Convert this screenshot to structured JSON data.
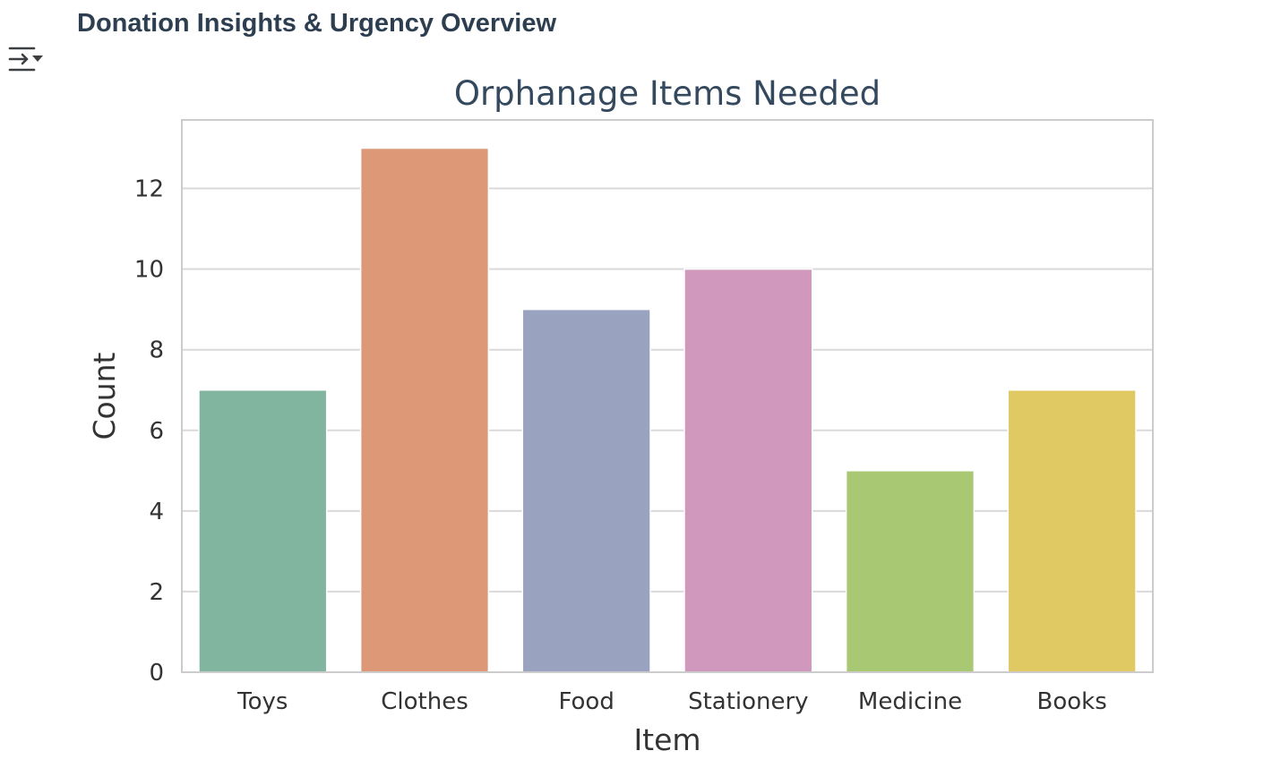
{
  "header": {
    "title": "Donation Insights & Urgency Overview",
    "toggle_icon": "output-collapse-icon"
  },
  "chart_data": {
    "type": "bar",
    "title": "Orphanage Items Needed",
    "xlabel": "Item",
    "ylabel": "Count",
    "categories": [
      "Toys",
      "Clothes",
      "Food",
      "Stationery",
      "Medicine",
      "Books"
    ],
    "values": [
      7,
      13,
      9,
      10,
      5,
      7
    ],
    "colors": [
      "#82b59f",
      "#dd9878",
      "#99a2be",
      "#d198bd",
      "#a9c874",
      "#e0c862"
    ],
    "ylim": [
      0,
      13.7
    ],
    "yticks": [
      0,
      2,
      4,
      6,
      8,
      10,
      12
    ],
    "grid": true,
    "legend": "none"
  }
}
